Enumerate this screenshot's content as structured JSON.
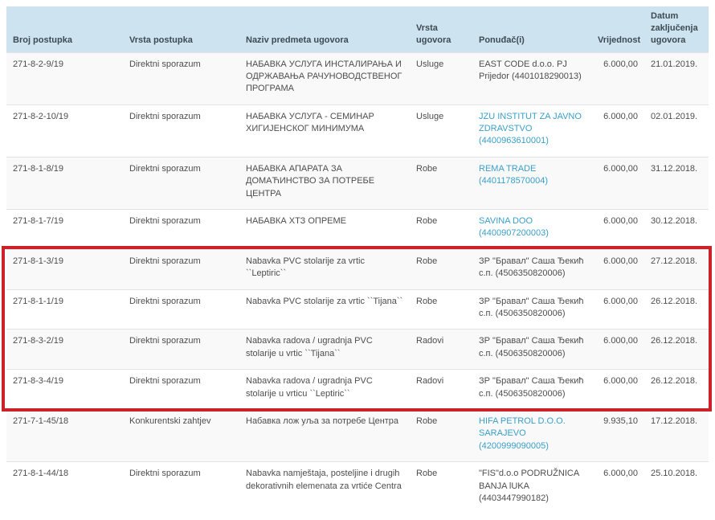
{
  "colors": {
    "header_bg": "#cde4f0",
    "header_text": "#3d4a52",
    "body_text": "#4d4d4d",
    "link": "#399fc9",
    "row_separator": "#e3e3e3",
    "highlight_border": "#cb2128"
  },
  "table": {
    "columns": [
      {
        "key": "broj",
        "label": "Broj postupka"
      },
      {
        "key": "vrsta_postupka",
        "label": "Vrsta postupka"
      },
      {
        "key": "naziv",
        "label": "Naziv predmeta ugovora"
      },
      {
        "key": "vrsta_ugovora",
        "label": "Vrsta ugovora"
      },
      {
        "key": "ponudjac",
        "label": "Ponuđač(i)"
      },
      {
        "key": "vrijednost",
        "label": "Vrijednost"
      },
      {
        "key": "datum",
        "label": "Datum zaključenja ugovora"
      }
    ],
    "rows": [
      {
        "broj": "271-8-2-9/19",
        "vrsta_postupka": "Direktni sporazum",
        "naziv": "НАБАВКА УСЛУГА ИНСТАЛИРАЊА И ОДРЖАВАЊА РАЧУНОВОДСТВЕНОГ ПРОГРАМА",
        "vrsta_ugovora": "Usluge",
        "ponudjac": "EAST CODE d.o.o. PJ Prijedor (4401018290013)",
        "ponudjac_link": false,
        "vrijednost": "6.000,00",
        "datum": "21.01.2019.",
        "highlighted": false
      },
      {
        "broj": "271-8-2-10/19",
        "vrsta_postupka": "Direktni sporazum",
        "naziv": "НАБАВКА УСЛУГА - СЕМИНАР ХИГИЈЕНСКОГ МИНИМУМА",
        "vrsta_ugovora": "Usluge",
        "ponudjac": "JZU INSTITUT ZA JAVNO ZDRAVSTVO (4400963610001)",
        "ponudjac_link": true,
        "vrijednost": "6.000,00",
        "datum": "02.01.2019.",
        "highlighted": false
      },
      {
        "broj": "271-8-1-8/19",
        "vrsta_postupka": "Direktni sporazum",
        "naziv": "НАБАВКА АПАРАТА ЗА ДОМАЋИНСТВО ЗА ПОТРЕБЕ ЦЕНТРА",
        "vrsta_ugovora": "Robe",
        "ponudjac": "REMA TRADE (4401178570004)",
        "ponudjac_link": true,
        "vrijednost": "6.000,00",
        "datum": "31.12.2018.",
        "highlighted": false
      },
      {
        "broj": "271-8-1-7/19",
        "vrsta_postupka": "Direktni sporazum",
        "naziv": "НАБАВКА ХТЗ ОПРЕМЕ",
        "vrsta_ugovora": "Robe",
        "ponudjac": "SAVINA DOO (4400907200003)",
        "ponudjac_link": true,
        "vrijednost": "6.000,00",
        "datum": "30.12.2018.",
        "highlighted": false
      },
      {
        "broj": "271-8-1-3/19",
        "vrsta_postupka": "Direktni sporazum",
        "naziv": "Nabavka PVC stolarije za vrtic ``Leptiric``",
        "vrsta_ugovora": "Robe",
        "ponudjac": "ЗР \"Бравал\" Саша Ђекић с.п. (4506350820006)",
        "ponudjac_link": false,
        "vrijednost": "6.000,00",
        "datum": "27.12.2018.",
        "highlighted": true
      },
      {
        "broj": "271-8-1-1/19",
        "vrsta_postupka": "Direktni sporazum",
        "naziv": "Nabavka PVC stolarije za vrtic ``Tijana``",
        "vrsta_ugovora": "Robe",
        "ponudjac": "ЗР \"Бравал\" Саша Ђекић с.п. (4506350820006)",
        "ponudjac_link": false,
        "vrijednost": "6.000,00",
        "datum": "26.12.2018.",
        "highlighted": true
      },
      {
        "broj": "271-8-3-2/19",
        "vrsta_postupka": "Direktni sporazum",
        "naziv": "Nabavka radova / ugradnja PVC stolarije u vrtic ``Tijana``",
        "vrsta_ugovora": "Radovi",
        "ponudjac": "ЗР \"Бравал\" Саша Ђекић с.п. (4506350820006)",
        "ponudjac_link": false,
        "vrijednost": "6.000,00",
        "datum": "26.12.2018.",
        "highlighted": true
      },
      {
        "broj": "271-8-3-4/19",
        "vrsta_postupka": "Direktni sporazum",
        "naziv": "Nabavka radova / ugradnja PVC stolarije u vrticu ``Leptiric``",
        "vrsta_ugovora": "Radovi",
        "ponudjac": "ЗР \"Бравал\" Саша Ђекић с.п. (4506350820006)",
        "ponudjac_link": false,
        "vrijednost": "6.000,00",
        "datum": "26.12.2018.",
        "highlighted": true
      },
      {
        "broj": "271-7-1-45/18",
        "vrsta_postupka": "Konkurentski zahtjev",
        "naziv": "Набавка лож уља за потребе Центра",
        "vrsta_ugovora": "Robe",
        "ponudjac": "HIFA PETROL D.O.O. SARAJEVO (4200999090005)",
        "ponudjac_link": true,
        "vrijednost": "9.935,10",
        "datum": "17.12.2018.",
        "highlighted": false
      },
      {
        "broj": "271-8-1-44/18",
        "vrsta_postupka": "Direktni sporazum",
        "naziv": "Nabavka namještaja, posteljine i drugih dekorativnih elemenata za vrtiće Centra",
        "vrsta_ugovora": "Robe",
        "ponudjac": "\"FIS\"d.o.o PODRUŽNICA BANJA lUKA (4403447990182)",
        "ponudjac_link": false,
        "vrijednost": "6.000,00",
        "datum": "25.10.2018.",
        "highlighted": false
      }
    ]
  }
}
